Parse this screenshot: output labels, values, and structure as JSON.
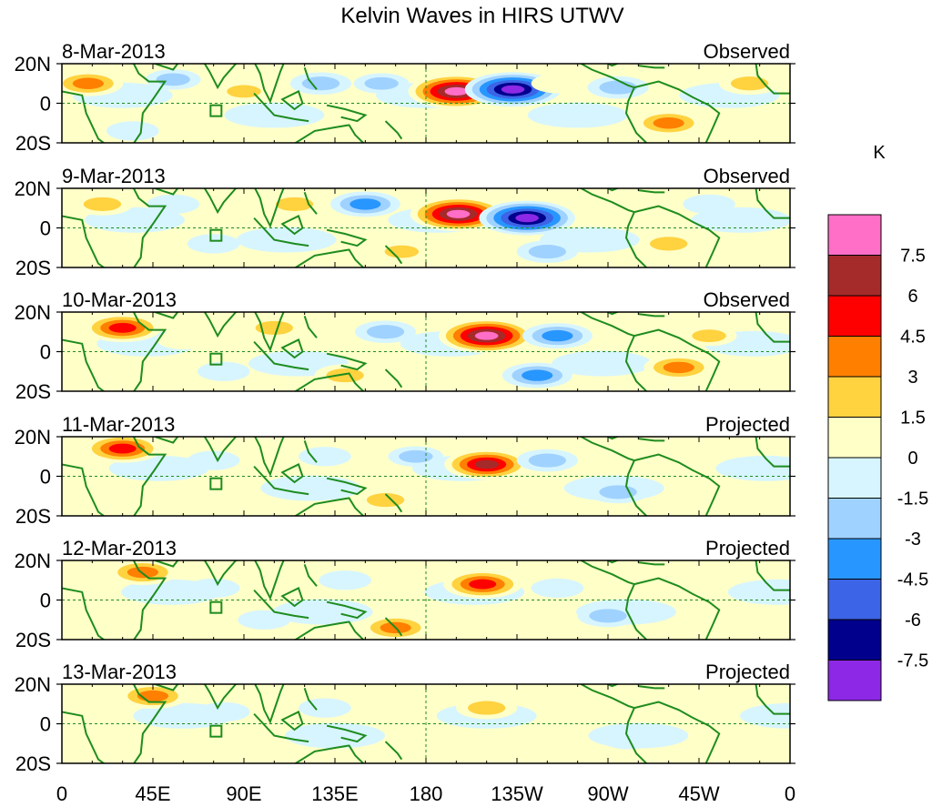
{
  "chart_data": {
    "type": "heatmap",
    "title": "Kelvin Waves in HIRS UTWV",
    "units": "K",
    "x_ticks": [
      "0",
      "45E",
      "90E",
      "135E",
      "180",
      "135W",
      "90W",
      "45W",
      "0"
    ],
    "y_ticks": [
      "20N",
      "0",
      "20S"
    ],
    "xlim": [
      0,
      360
    ],
    "ylim": [
      -20,
      20
    ],
    "panels": [
      {
        "date": "8-Mar-2013",
        "label": "Observed"
      },
      {
        "date": "9-Mar-2013",
        "label": "Observed"
      },
      {
        "date": "10-Mar-2013",
        "label": "Observed"
      },
      {
        "date": "11-Mar-2013",
        "label": "Projected"
      },
      {
        "date": "12-Mar-2013",
        "label": "Projected"
      },
      {
        "date": "13-Mar-2013",
        "label": "Projected"
      }
    ],
    "colorbar": {
      "levels": [
        "7.5",
        "6",
        "4.5",
        "3",
        "1.5",
        "0",
        "-1.5",
        "-3",
        "-4.5",
        "-6",
        "-7.5"
      ],
      "colors": [
        "#ff6ec7",
        "#a52a2a",
        "#ff0000",
        "#ff7f00",
        "#ffd23f",
        "#ffffc8",
        "#d7f5ff",
        "#a0d2ff",
        "#2896ff",
        "#3c64e6",
        "#00008c",
        "#8c28e6"
      ]
    },
    "features": [
      {
        "panel": 0,
        "lon": 13,
        "lat": 10,
        "value": 4.5
      },
      {
        "panel": 0,
        "lon": 55,
        "lat": 12,
        "value": -2
      },
      {
        "panel": 0,
        "lon": 90,
        "lat": 6,
        "value": 2
      },
      {
        "panel": 0,
        "lon": 128,
        "lat": 10,
        "value": -3
      },
      {
        "panel": 0,
        "lon": 158,
        "lat": 10,
        "value": -2
      },
      {
        "panel": 0,
        "lon": 195,
        "lat": 6,
        "value": 9
      },
      {
        "panel": 0,
        "lon": 223,
        "lat": 7,
        "value": -9
      },
      {
        "panel": 0,
        "lon": 245,
        "lat": 10,
        "value": 1.5
      },
      {
        "panel": 0,
        "lon": 275,
        "lat": 8,
        "value": -3
      },
      {
        "panel": 0,
        "lon": 300,
        "lat": -10,
        "value": 4.5
      },
      {
        "panel": 0,
        "lon": 160,
        "lat": -8,
        "value": 1.5
      },
      {
        "panel": 0,
        "lon": 70,
        "lat": -15,
        "value": 1.5
      },
      {
        "panel": 0,
        "lon": 35,
        "lat": -14,
        "value": -1.5
      },
      {
        "panel": 0,
        "lon": 340,
        "lat": 10,
        "value": 3
      },
      {
        "panel": 1,
        "lon": 20,
        "lat": 12,
        "value": 3
      },
      {
        "panel": 1,
        "lon": 55,
        "lat": 12,
        "value": -1.5
      },
      {
        "panel": 1,
        "lon": 115,
        "lat": 12,
        "value": 3
      },
      {
        "panel": 1,
        "lon": 150,
        "lat": 12,
        "value": -4.5
      },
      {
        "panel": 1,
        "lon": 196,
        "lat": 7,
        "value": 9
      },
      {
        "panel": 1,
        "lon": 230,
        "lat": 5,
        "value": -9
      },
      {
        "panel": 1,
        "lon": 265,
        "lat": 10,
        "value": 1.5
      },
      {
        "panel": 1,
        "lon": 300,
        "lat": -8,
        "value": 3
      },
      {
        "panel": 1,
        "lon": 240,
        "lat": -12,
        "value": -3
      },
      {
        "panel": 1,
        "lon": 75,
        "lat": -8,
        "value": -1.5
      },
      {
        "panel": 1,
        "lon": 168,
        "lat": -12,
        "value": 2
      },
      {
        "panel": 1,
        "lon": 320,
        "lat": 12,
        "value": -1.5
      },
      {
        "panel": 2,
        "lon": 30,
        "lat": 12,
        "value": 6
      },
      {
        "panel": 2,
        "lon": 60,
        "lat": 6,
        "value": 1.5
      },
      {
        "panel": 2,
        "lon": 105,
        "lat": 12,
        "value": 3
      },
      {
        "panel": 2,
        "lon": 160,
        "lat": 10,
        "value": -3
      },
      {
        "panel": 2,
        "lon": 210,
        "lat": 8,
        "value": 9
      },
      {
        "panel": 2,
        "lon": 245,
        "lat": 8,
        "value": -4.5
      },
      {
        "panel": 2,
        "lon": 235,
        "lat": -12,
        "value": -4.5
      },
      {
        "panel": 2,
        "lon": 140,
        "lat": -12,
        "value": 3
      },
      {
        "panel": 2,
        "lon": 305,
        "lat": -8,
        "value": 4.5
      },
      {
        "panel": 2,
        "lon": 320,
        "lat": 8,
        "value": 2
      },
      {
        "panel": 2,
        "lon": 80,
        "lat": -10,
        "value": -1.5
      },
      {
        "panel": 3,
        "lon": 30,
        "lat": 14,
        "value": 6
      },
      {
        "panel": 3,
        "lon": 75,
        "lat": 8,
        "value": -1.5
      },
      {
        "panel": 3,
        "lon": 130,
        "lat": 10,
        "value": -1.5
      },
      {
        "panel": 3,
        "lon": 175,
        "lat": 10,
        "value": -2
      },
      {
        "panel": 3,
        "lon": 210,
        "lat": 6,
        "value": 7
      },
      {
        "panel": 3,
        "lon": 240,
        "lat": 8,
        "value": -3
      },
      {
        "panel": 3,
        "lon": 160,
        "lat": -12,
        "value": 3
      },
      {
        "panel": 3,
        "lon": 275,
        "lat": -8,
        "value": -3
      },
      {
        "panel": 3,
        "lon": 320,
        "lat": -6,
        "value": 1.5
      },
      {
        "panel": 3,
        "lon": 230,
        "lat": -10,
        "value": 1.5
      },
      {
        "panel": 4,
        "lon": 40,
        "lat": 14,
        "value": 4.5
      },
      {
        "panel": 4,
        "lon": 75,
        "lat": 6,
        "value": -1.5
      },
      {
        "panel": 4,
        "lon": 140,
        "lat": 10,
        "value": -1.5
      },
      {
        "panel": 4,
        "lon": 208,
        "lat": 8,
        "value": 6
      },
      {
        "panel": 4,
        "lon": 245,
        "lat": 6,
        "value": -1.5
      },
      {
        "panel": 4,
        "lon": 165,
        "lat": -14,
        "value": 4.5
      },
      {
        "panel": 4,
        "lon": 270,
        "lat": -8,
        "value": -3
      },
      {
        "panel": 4,
        "lon": 310,
        "lat": 4,
        "value": 1.5
      },
      {
        "panel": 4,
        "lon": 100,
        "lat": -10,
        "value": -1.5
      },
      {
        "panel": 5,
        "lon": 45,
        "lat": 14,
        "value": 4.5
      },
      {
        "panel": 5,
        "lon": 80,
        "lat": 6,
        "value": -1.5
      },
      {
        "panel": 5,
        "lon": 210,
        "lat": 8,
        "value": 3
      },
      {
        "panel": 5,
        "lon": 170,
        "lat": -14,
        "value": 1.5
      },
      {
        "panel": 5,
        "lon": 280,
        "lat": -8,
        "value": -1.5
      },
      {
        "panel": 5,
        "lon": 310,
        "lat": 4,
        "value": 1.5
      },
      {
        "panel": 5,
        "lon": 130,
        "lat": 8,
        "value": -1.5
      }
    ]
  }
}
